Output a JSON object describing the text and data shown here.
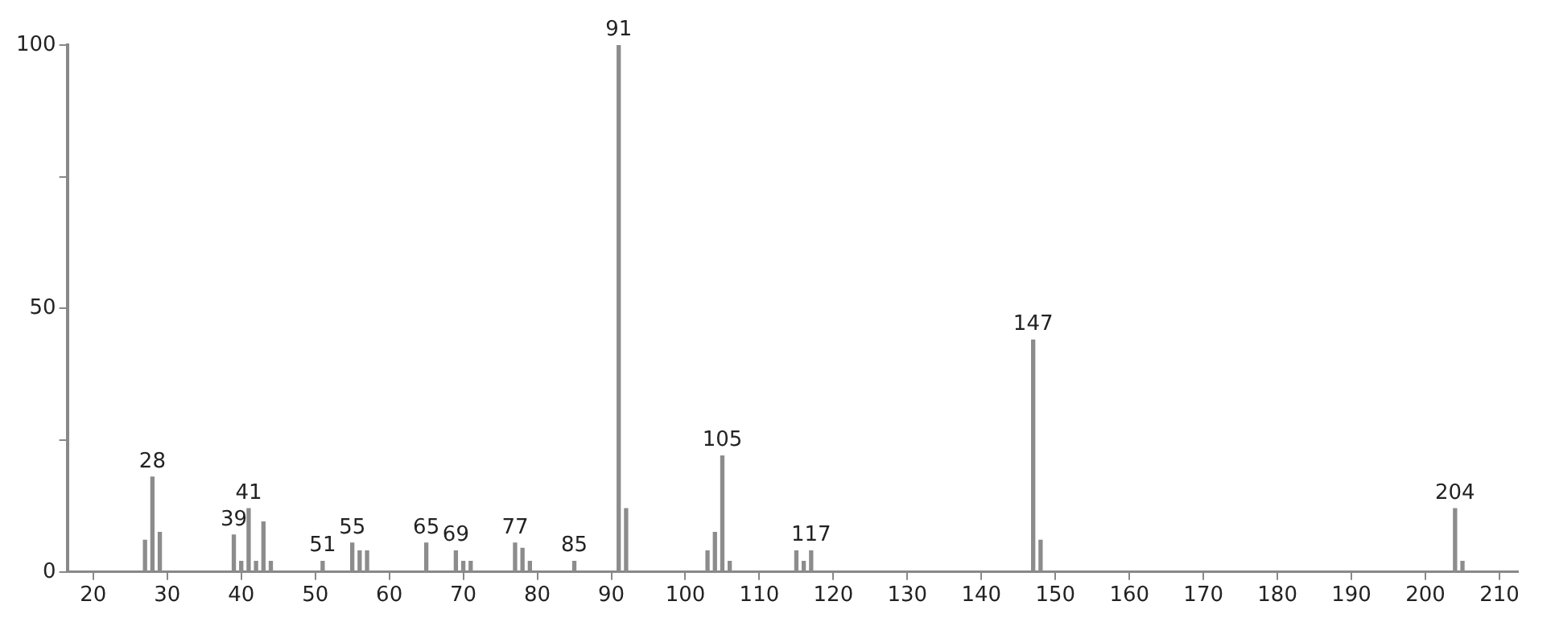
{
  "chart_data": {
    "type": "bar",
    "x": [
      27,
      28,
      29,
      39,
      40,
      41,
      42,
      43,
      44,
      51,
      55,
      56,
      57,
      65,
      69,
      70,
      71,
      77,
      78,
      79,
      85,
      91,
      92,
      103,
      104,
      105,
      106,
      115,
      116,
      117,
      147,
      148,
      204,
      205
    ],
    "values": [
      6,
      18,
      7.5,
      7,
      2,
      12,
      2,
      9.5,
      2,
      2,
      5.5,
      4,
      4,
      5.5,
      4,
      2,
      2,
      5.5,
      4.5,
      2,
      2,
      100,
      12,
      4,
      7.5,
      22,
      2,
      4,
      2,
      4,
      44,
      6,
      12,
      2
    ],
    "annotations": [
      {
        "text": "28",
        "x": 28,
        "y": 18
      },
      {
        "text": "39",
        "x": 39,
        "y": 7
      },
      {
        "text": "41",
        "x": 41,
        "y": 12
      },
      {
        "text": "51",
        "x": 51,
        "y": 2
      },
      {
        "text": "55",
        "x": 55,
        "y": 5.5
      },
      {
        "text": "65",
        "x": 65,
        "y": 5.5
      },
      {
        "text": "69",
        "x": 69,
        "y": 4
      },
      {
        "text": "77",
        "x": 77,
        "y": 5.5
      },
      {
        "text": "85",
        "x": 85,
        "y": 2
      },
      {
        "text": "91",
        "x": 91,
        "y": 100
      },
      {
        "text": "105",
        "x": 105,
        "y": 22
      },
      {
        "text": "117",
        "x": 117,
        "y": 4
      },
      {
        "text": "147",
        "x": 147,
        "y": 44
      },
      {
        "text": "204",
        "x": 204,
        "y": 12
      }
    ],
    "color": "#8c8c8c",
    "xlim": [
      16.5,
      212.5
    ],
    "xticks": [
      20,
      30,
      40,
      50,
      60,
      70,
      80,
      90,
      100,
      110,
      120,
      130,
      140,
      150,
      160,
      170,
      180,
      190,
      200,
      210
    ],
    "ylim": [
      0,
      100
    ],
    "yticks": [
      0,
      {
        "value": 25,
        "label": null
      },
      50,
      {
        "value": 75,
        "label": null
      },
      100
    ],
    "grid": false,
    "legend": false
  }
}
